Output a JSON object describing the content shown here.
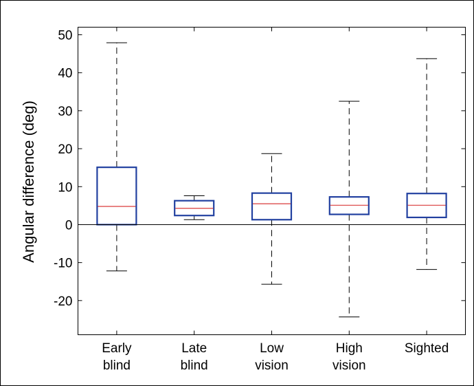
{
  "chart_data": {
    "type": "box",
    "title": "",
    "xlabel": "",
    "ylabel": "Angular difference (deg)",
    "ylim": [
      -29,
      52
    ],
    "yticks": [
      50,
      40,
      30,
      20,
      10,
      0,
      -10,
      -20
    ],
    "ytick_labels": [
      "50",
      "40",
      "30",
      "20",
      "10",
      "0",
      "-10",
      "-20"
    ],
    "reference_line_y": 0,
    "categories": [
      {
        "line1": "Early",
        "line2": "blind"
      },
      {
        "line1": "Late",
        "line2": "blind"
      },
      {
        "line1": "Low",
        "line2": "vision"
      },
      {
        "line1": "High",
        "line2": "vision"
      },
      {
        "line1": "Sighted",
        "line2": ""
      }
    ],
    "boxes": [
      {
        "whisker_low": -12.2,
        "q1": 0.0,
        "median": 4.8,
        "q3": 15.1,
        "whisker_high": 47.9
      },
      {
        "whisker_low": 1.3,
        "q1": 2.4,
        "median": 4.3,
        "q3": 6.3,
        "whisker_high": 7.6
      },
      {
        "whisker_low": -15.7,
        "q1": 1.3,
        "median": 5.5,
        "q3": 8.3,
        "whisker_high": 18.7
      },
      {
        "whisker_low": -24.3,
        "q1": 2.7,
        "median": 5.1,
        "q3": 7.3,
        "whisker_high": 32.5
      },
      {
        "whisker_low": -11.8,
        "q1": 1.9,
        "median": 5.1,
        "q3": 8.2,
        "whisker_high": 43.7
      }
    ],
    "colors": {
      "box": "#2140a0",
      "median": "#d93a3a",
      "whisker": "#000000",
      "axis": "#000000"
    },
    "grid": false
  }
}
